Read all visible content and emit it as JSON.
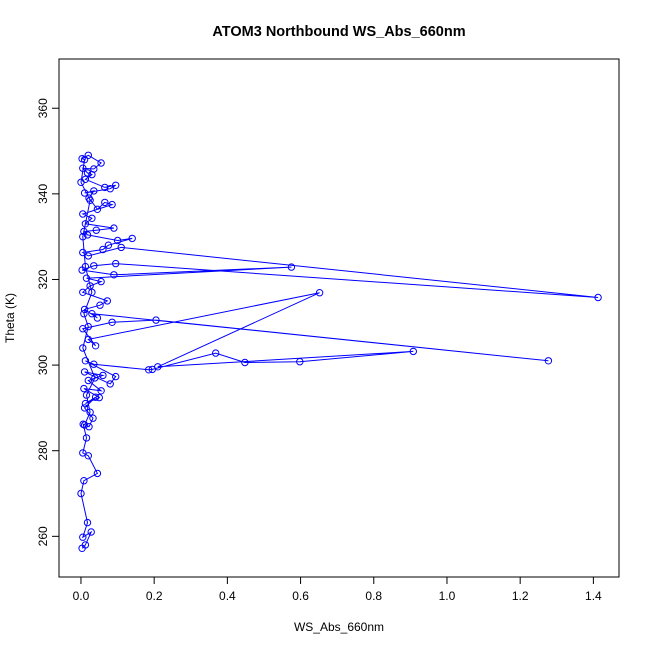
{
  "chart_data": {
    "type": "line",
    "title": "ATOM3 Northbound WS_Abs_660nm",
    "xlabel": "WS_Abs_660nm",
    "ylabel": "Theta (K)",
    "xlim": [
      -0.06,
      1.47
    ],
    "ylim": [
      250.5,
      371.5
    ],
    "xticks": [
      "0.0",
      "0.2",
      "0.4",
      "0.6",
      "0.8",
      "1.0",
      "1.2",
      "1.4"
    ],
    "xtick_values": [
      0,
      0.2,
      0.4,
      0.6,
      0.8,
      1.0,
      1.2,
      1.4
    ],
    "yticks": [
      "260",
      "280",
      "300",
      "320",
      "340",
      "360"
    ],
    "ytick_values": [
      260,
      280,
      300,
      320,
      340,
      360
    ],
    "grid": false,
    "series": [
      {
        "color": "#0000ff",
        "marker": "open-circle",
        "points": [
          [
            0.003,
            257.2
          ],
          [
            0.012,
            258.0
          ],
          [
            0.028,
            261.0
          ],
          [
            0.005,
            259.8
          ],
          [
            0.018,
            263.2
          ],
          [
            0.0,
            270.0
          ],
          [
            0.008,
            273.0
          ],
          [
            0.045,
            274.7
          ],
          [
            0.02,
            278.8
          ],
          [
            0.005,
            279.5
          ],
          [
            0.015,
            283.0
          ],
          [
            0.006,
            286.2
          ],
          [
            0.022,
            285.6
          ],
          [
            0.033,
            287.6
          ],
          [
            0.01,
            290.0
          ],
          [
            0.04,
            292.5
          ],
          [
            0.012,
            291.0
          ],
          [
            0.05,
            292.4
          ],
          [
            0.008,
            294.5
          ],
          [
            0.055,
            294.0
          ],
          [
            0.02,
            296.4
          ],
          [
            0.06,
            297.6
          ],
          [
            0.01,
            298.4
          ],
          [
            0.08,
            295.6
          ],
          [
            0.095,
            297.3
          ],
          [
            0.012,
            301.0
          ],
          [
            0.035,
            300.2
          ],
          [
            0.185,
            298.9
          ],
          [
            0.195,
            299.0
          ],
          [
            0.368,
            302.8
          ],
          [
            0.448,
            300.6
          ],
          [
            0.598,
            300.8
          ],
          [
            0.908,
            303.2
          ],
          [
            0.21,
            299.6
          ],
          [
            0.652,
            316.9
          ],
          [
            0.02,
            306.0
          ],
          [
            0.04,
            304.5
          ],
          [
            0.005,
            308.5
          ],
          [
            0.085,
            310.0
          ],
          [
            0.205,
            310.5
          ],
          [
            1.277,
            301.0
          ],
          [
            0.03,
            312.0
          ],
          [
            0.045,
            311.0
          ],
          [
            0.01,
            313.0
          ],
          [
            0.052,
            314.0
          ],
          [
            0.072,
            315.0
          ],
          [
            0.005,
            317.0
          ],
          [
            0.025,
            318.5
          ],
          [
            0.055,
            319.5
          ],
          [
            0.015,
            320.3
          ],
          [
            0.575,
            322.9
          ],
          [
            0.09,
            321.1
          ],
          [
            0.003,
            322.2
          ],
          [
            0.035,
            323.2
          ],
          [
            0.095,
            323.7
          ],
          [
            1.413,
            315.8
          ],
          [
            0.11,
            327.5
          ],
          [
            0.02,
            325.5
          ],
          [
            0.005,
            326.3
          ],
          [
            0.06,
            327.0
          ],
          [
            0.075,
            328.0
          ],
          [
            0.14,
            329.6
          ],
          [
            0.1,
            329.1
          ],
          [
            0.018,
            330.4
          ],
          [
            0.008,
            331.2
          ],
          [
            0.042,
            331.5
          ],
          [
            0.09,
            332.0
          ],
          [
            0.012,
            333.0
          ],
          [
            0.03,
            334.3
          ],
          [
            0.005,
            335.3
          ],
          [
            0.085,
            337.5
          ],
          [
            0.065,
            338.0
          ],
          [
            0.045,
            336.4
          ],
          [
            0.022,
            339.0
          ],
          [
            0.035,
            340.7
          ],
          [
            0.01,
            340.2
          ],
          [
            0.08,
            341.2
          ],
          [
            0.095,
            342.0
          ],
          [
            0.065,
            341.5
          ],
          [
            0.012,
            343.4
          ],
          [
            0.03,
            344.5
          ],
          [
            0.018,
            344.9
          ],
          [
            0.005,
            346.0
          ],
          [
            0.035,
            345.8
          ],
          [
            0.055,
            347.2
          ],
          [
            0.02,
            349.0
          ],
          [
            0.003,
            348.2
          ],
          [
            0.01,
            348.0
          ],
          [
            0.0,
            342.7
          ],
          [
            0.025,
            338.5
          ],
          [
            0.005,
            330.0
          ],
          [
            0.012,
            323.0
          ],
          [
            0.03,
            317.0
          ],
          [
            0.008,
            312.0
          ],
          [
            0.02,
            309.0
          ],
          [
            0.005,
            304.0
          ],
          [
            0.038,
            297.0
          ],
          [
            0.015,
            293.0
          ],
          [
            0.025,
            289.0
          ],
          [
            0.01,
            286.0
          ]
        ]
      }
    ]
  }
}
